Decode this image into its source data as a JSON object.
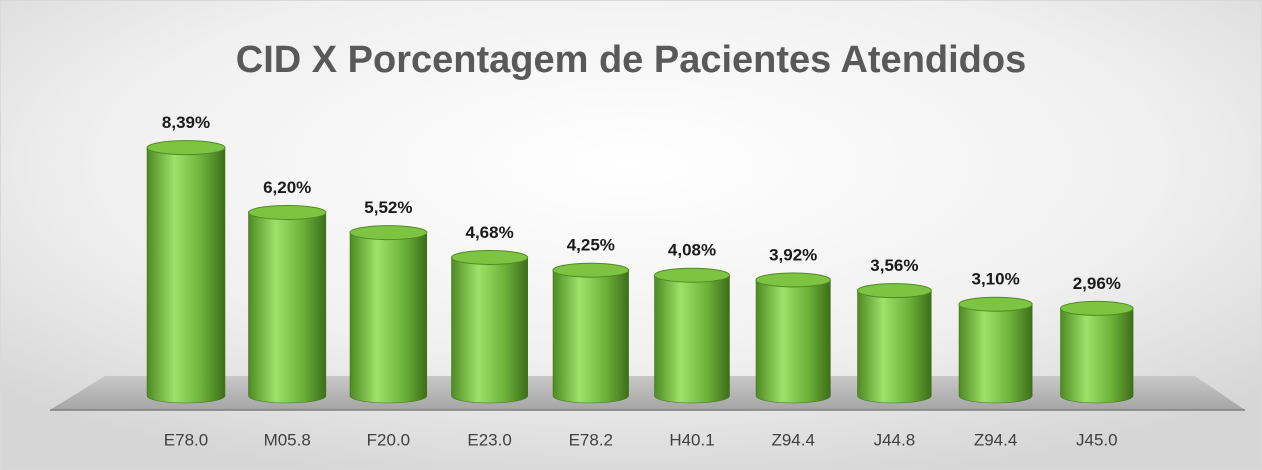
{
  "chart_data": {
    "type": "bar3d",
    "title": "CID X Porcentagem de Pacientes Atendidos",
    "categories": [
      "E78.0",
      "M05.8",
      "F20.0",
      "E23.0",
      "E78.2",
      "H40.1",
      "Z94.4",
      "J44.8",
      "Z94.4",
      "J45.0"
    ],
    "values": [
      8.39,
      6.2,
      5.52,
      4.68,
      4.25,
      4.08,
      3.92,
      3.56,
      3.1,
      2.96
    ],
    "value_labels": [
      "8,39%",
      "6,20%",
      "5,52%",
      "4,68%",
      "4,25%",
      "4,08%",
      "3,92%",
      "3,56%",
      "3,10%",
      "2,96%"
    ],
    "color": "#7dc443"
  }
}
